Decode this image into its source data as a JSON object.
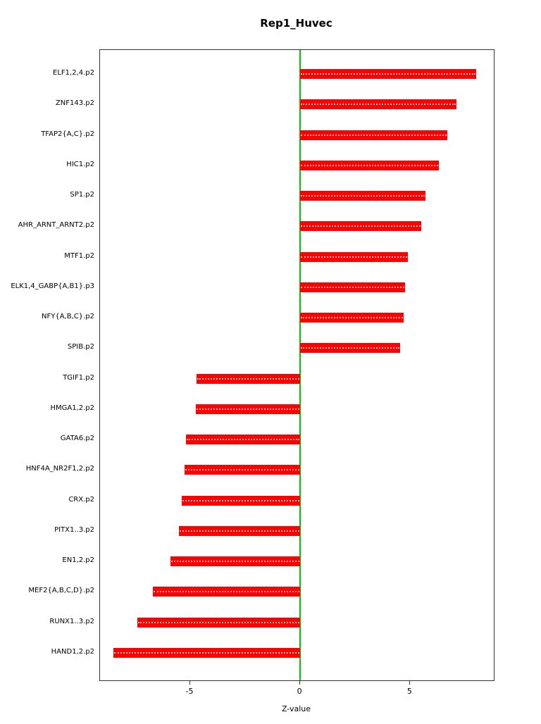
{
  "title": "Rep1_Huvec",
  "chart_data": {
    "type": "bar",
    "orientation": "horizontal",
    "title": "Rep1_Huvec",
    "xlabel": "Z-value",
    "ylabel": "",
    "categories": [
      "ELF1,2,4.p2",
      "ZNF143.p2",
      "TFAP2{A,C}.p2",
      "HIC1.p2",
      "SP1.p2",
      "AHR_ARNT_ARNT2.p2",
      "MTF1.p2",
      "ELK1,4_GABP{A,B1}.p3",
      "NFY{A,B,C}.p2",
      "SPIB.p2",
      "TGIF1.p2",
      "HMGA1,2.p2",
      "GATA6.p2",
      "HNF4A_NR2F1,2.p2",
      "CRX.p2",
      "PITX1..3.p2",
      "EN1,2.p2",
      "MEF2{A,B,C,D}.p2",
      "RUNX1..3.p2",
      "HAND1,2.p2"
    ],
    "values": [
      8.0,
      7.1,
      6.7,
      6.3,
      5.7,
      5.5,
      4.9,
      4.75,
      4.7,
      4.55,
      -4.7,
      -4.75,
      -5.2,
      -5.25,
      -5.4,
      -5.5,
      -5.9,
      -6.7,
      -7.4,
      -8.5
    ],
    "xlim": [
      -9.1,
      8.8
    ],
    "xticks": [
      -5,
      0,
      5
    ],
    "grid": false,
    "legend": "none",
    "bar_color": "#FF0000",
    "zero_line_color": "#00C800"
  }
}
